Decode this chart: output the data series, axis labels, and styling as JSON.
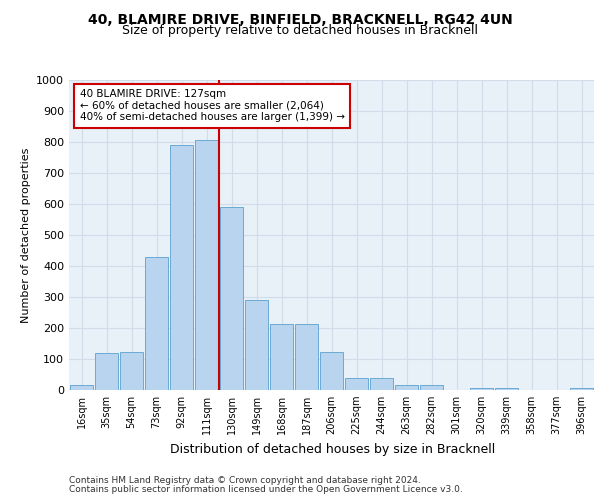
{
  "title_line1": "40, BLAMIRE DRIVE, BINFIELD, BRACKNELL, RG42 4UN",
  "title_line2": "Size of property relative to detached houses in Bracknell",
  "xlabel": "Distribution of detached houses by size in Bracknell",
  "ylabel": "Number of detached properties",
  "footer_line1": "Contains HM Land Registry data © Crown copyright and database right 2024.",
  "footer_line2": "Contains public sector information licensed under the Open Government Licence v3.0.",
  "bar_labels": [
    "16sqm",
    "35sqm",
    "54sqm",
    "73sqm",
    "92sqm",
    "111sqm",
    "130sqm",
    "149sqm",
    "168sqm",
    "187sqm",
    "206sqm",
    "225sqm",
    "244sqm",
    "263sqm",
    "282sqm",
    "301sqm",
    "320sqm",
    "339sqm",
    "358sqm",
    "377sqm",
    "396sqm"
  ],
  "bar_values": [
    17,
    120,
    122,
    430,
    790,
    808,
    590,
    290,
    212,
    212,
    122,
    40,
    40,
    15,
    15,
    0,
    5,
    5,
    0,
    0,
    5
  ],
  "bar_color": "#b8d4ee",
  "bar_edgecolor": "#6aaad4",
  "vline_color": "#cc0000",
  "vline_x_index": 6,
  "annotation_text": "40 BLAMIRE DRIVE: 127sqm\n← 60% of detached houses are smaller (2,064)\n40% of semi-detached houses are larger (1,399) →",
  "annotation_box_edgecolor": "#cc0000",
  "annotation_box_facecolor": "#ffffff",
  "ylim": [
    0,
    1000
  ],
  "yticks": [
    0,
    100,
    200,
    300,
    400,
    500,
    600,
    700,
    800,
    900,
    1000
  ],
  "grid_color": "#d0dde8",
  "fig_bg_color": "#ffffff",
  "plot_bg_color": "#e8f0f8",
  "title1_fontsize": 10,
  "title2_fontsize": 9,
  "ylabel_fontsize": 8,
  "xlabel_fontsize": 9,
  "tick_fontsize": 7,
  "footer_fontsize": 6.5,
  "annot_fontsize": 7.5
}
